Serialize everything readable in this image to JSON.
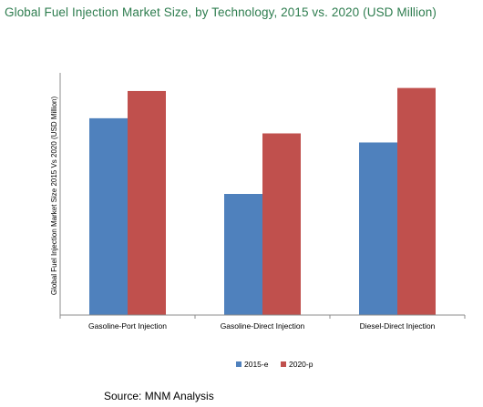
{
  "title": "Global Fuel Injection Market Size, by Technology, 2015 vs. 2020 (USD Million)",
  "source": "Source: MNM Analysis",
  "chart_data": {
    "type": "bar",
    "title": "Global Fuel Injection Market Size, by Technology, 2015 vs. 2020 (USD Million)",
    "ylabel": "Global Fuel Injection Market Size 2015 Vs 2020 (USD Million)",
    "xlabel": "",
    "categories": [
      "Gasoline-Port Injection",
      "Gasoline-Direct Injection",
      "Diesel-Direct Injection"
    ],
    "series": [
      {
        "name": "2015-e",
        "values": [
          65,
          40,
          57
        ],
        "color": "#4f81bd"
      },
      {
        "name": "2020-p",
        "values": [
          74,
          60,
          75
        ],
        "color": "#c0504d"
      }
    ],
    "ylim": [
      0,
      80
    ],
    "y_ticks_shown": false,
    "grid": false,
    "legend_position": "bottom"
  }
}
